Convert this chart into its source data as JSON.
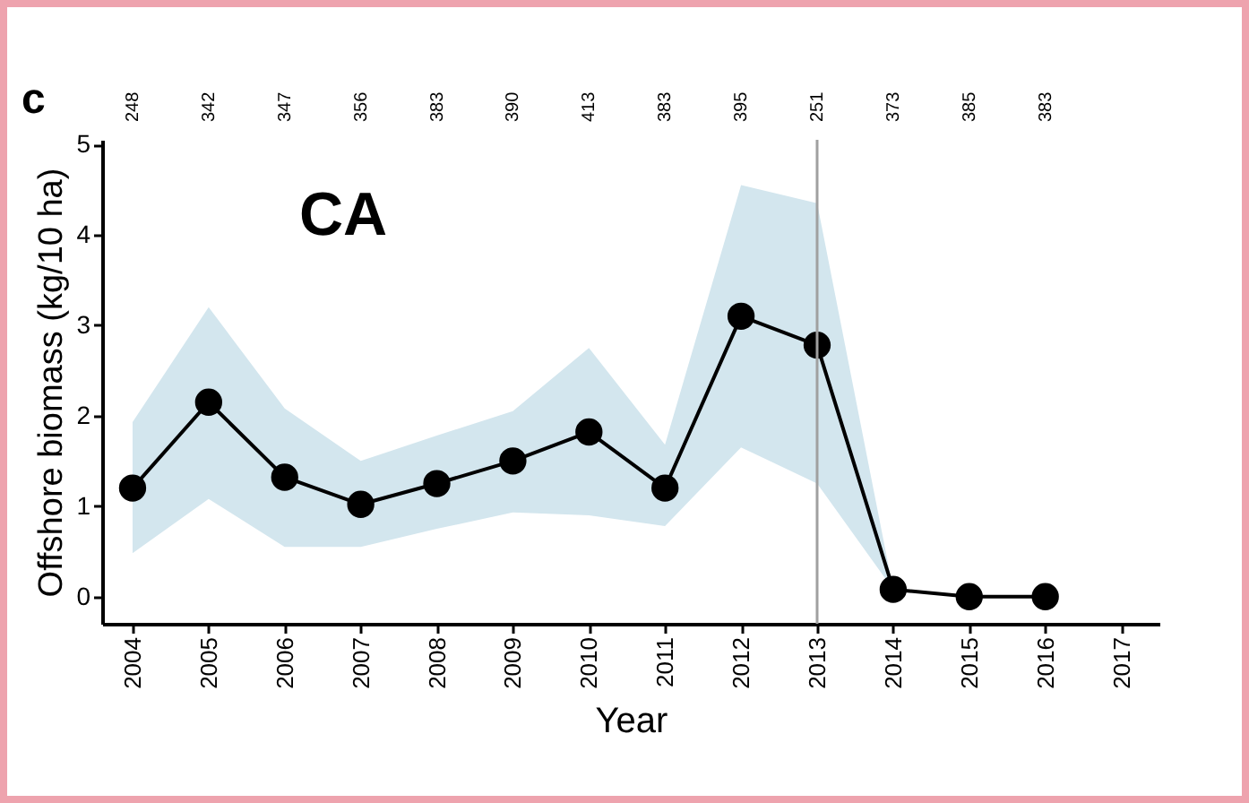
{
  "chart_data": {
    "type": "line",
    "xlabel": "Year",
    "ylabel": "Offshore biomass (kg/10 ha)",
    "annotations": [
      "c",
      "CA",
      "248",
      "342",
      "347",
      "356",
      "383",
      "390",
      "413",
      "383",
      "395",
      "251",
      "373",
      "385",
      "383"
    ],
    "x": [
      2004,
      2005,
      2006,
      2007,
      2008,
      2009,
      2010,
      2011,
      2012,
      2013,
      2014,
      2015,
      2016
    ],
    "series": [
      {
        "color": "#000000",
        "values": [
          1.2,
          2.15,
          1.32,
          1.02,
          1.25,
          1.5,
          1.82,
          1.2,
          3.1,
          2.78,
          0.08,
          0.0,
          0.0
        ],
        "lower": [
          0.48,
          1.08,
          0.55,
          0.55,
          0.75,
          0.93,
          0.9,
          0.78,
          1.65,
          1.25,
          0.08,
          0.0,
          0.0
        ],
        "upper": [
          1.93,
          3.2,
          2.08,
          1.5,
          1.78,
          2.05,
          2.75,
          1.68,
          4.55,
          4.35,
          0.08,
          0.0,
          0.0
        ]
      }
    ],
    "xlim": [
      2003.6,
      2017.5
    ],
    "xticks": [
      2004,
      2005,
      2006,
      2007,
      2008,
      2009,
      2010,
      2011,
      2012,
      2013,
      2014,
      2015,
      2016,
      2017
    ],
    "ylim": [
      -0.3,
      5.05
    ],
    "yticks": [
      0,
      1,
      2,
      3,
      4,
      5
    ],
    "ref_lines": [
      {
        "axis": "x",
        "value": 2013,
        "color": "#a0a0a0"
      }
    ],
    "marker": "circle",
    "grid": false
  }
}
